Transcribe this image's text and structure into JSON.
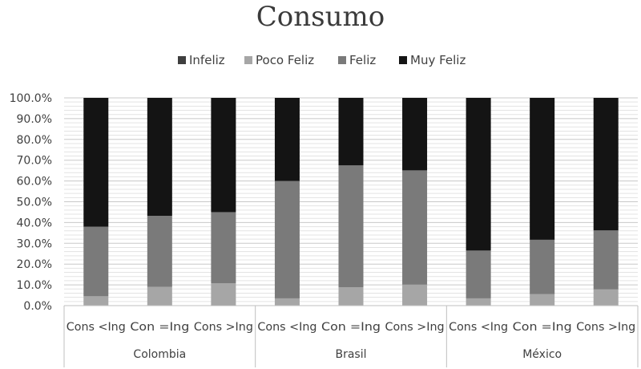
{
  "chart_data": {
    "type": "bar",
    "stacked": true,
    "percent": true,
    "title": "Consumo",
    "legend_position": "top",
    "categories": [
      "Cons <Ing",
      "Con =Ing",
      "Cons >Ing",
      "Cons <Ing",
      "Con =Ing",
      "Cons >Ing",
      "Cons <Ing",
      "Con =Ing",
      "Cons >Ing"
    ],
    "groups": [
      {
        "label": "Colombia",
        "start": 0,
        "count": 3
      },
      {
        "label": "Brasil",
        "start": 3,
        "count": 3
      },
      {
        "label": "México",
        "start": 6,
        "count": 3
      }
    ],
    "series": [
      {
        "name": "Infeliz",
        "color": "#3f3f3f",
        "values": [
          0.2,
          0.2,
          0.3,
          0.2,
          0.2,
          0.2,
          0.2,
          0.2,
          0.2
        ]
      },
      {
        "name": "Poco Feliz",
        "color": "#a6a6a6",
        "values": [
          4.3,
          8.8,
          10.5,
          3.3,
          8.6,
          9.9,
          3.3,
          5.3,
          7.6
        ]
      },
      {
        "name": "Feliz",
        "color": "#7a7a7a",
        "values": [
          33.5,
          34.2,
          34.2,
          56.5,
          58.7,
          55.0,
          23.0,
          26.2,
          28.4
        ]
      },
      {
        "name": "Muy Feliz",
        "color": "#141414",
        "values": [
          62.0,
          56.8,
          55.0,
          40.0,
          32.5,
          34.9,
          73.5,
          68.3,
          63.8
        ]
      }
    ],
    "ylim": [
      0,
      100
    ],
    "yticks": [
      "0.0%",
      "10.0%",
      "20.0%",
      "30.0%",
      "40.0%",
      "50.0%",
      "60.0%",
      "70.0%",
      "80.0%",
      "90.0%",
      "100.0%"
    ],
    "grid": true
  }
}
